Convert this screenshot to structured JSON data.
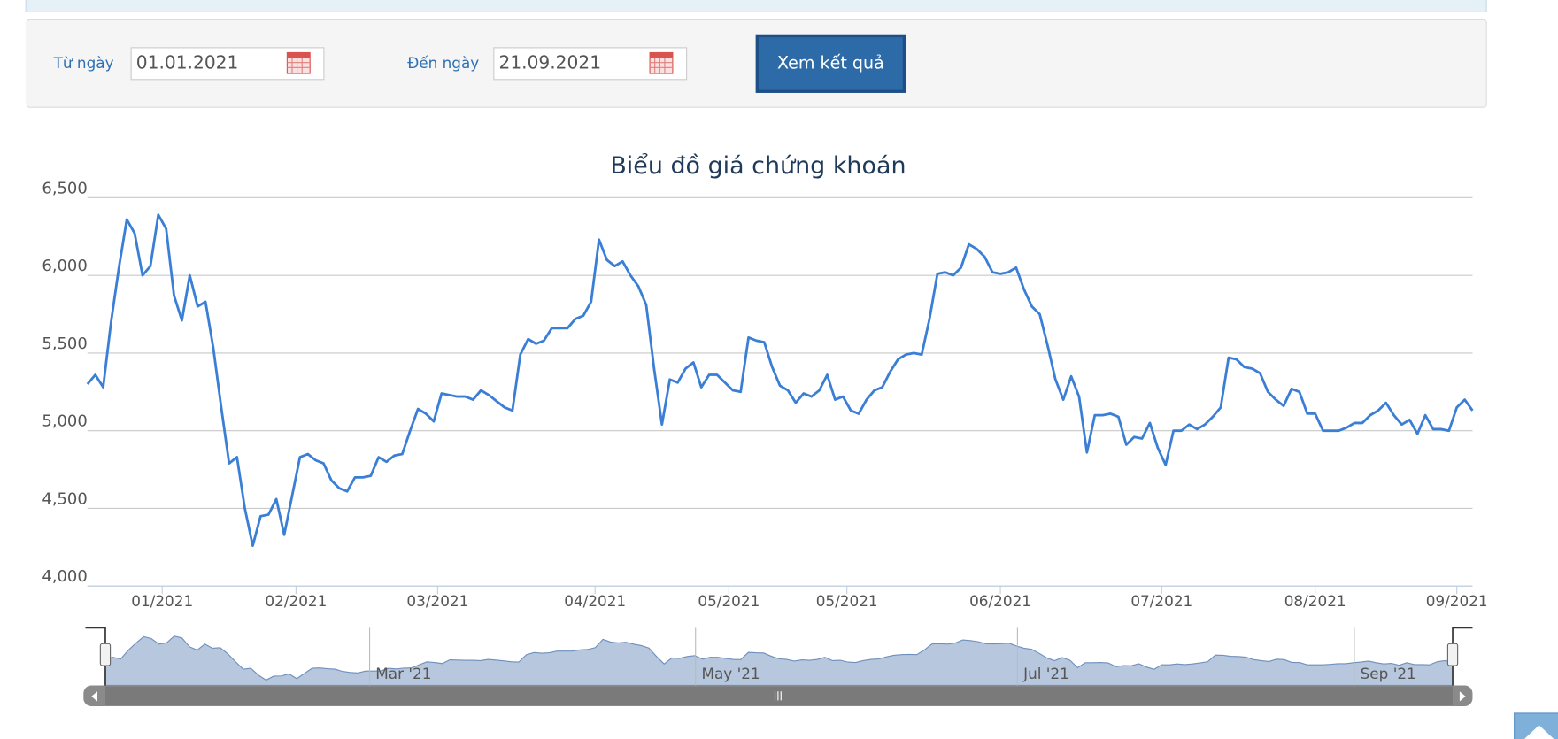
{
  "form": {
    "from_label": "Từ ngày",
    "from_value": "01.01.2021",
    "to_label": "Đến ngày",
    "to_value": "21.09.2021",
    "button": "Xem kết quả"
  },
  "chart_data": {
    "type": "line",
    "title": "Biểu đồ giá chứng khoán",
    "color": "#3a7fd5",
    "values": [
      5300,
      5360,
      5280,
      5700,
      6050,
      6360,
      6270,
      6000,
      6060,
      6390,
      6300,
      5870,
      5710,
      6000,
      5800,
      5830,
      5530,
      5150,
      4790,
      4830,
      4500,
      4260,
      4450,
      4460,
      4560,
      4330,
      4580,
      4830,
      4850,
      4810,
      4790,
      4680,
      4630,
      4610,
      4700,
      4700,
      4710,
      4830,
      4800,
      4840,
      4850,
      5000,
      5140,
      5110,
      5060,
      5240,
      5230,
      5220,
      5220,
      5200,
      5260,
      5230,
      5190,
      5150,
      5130,
      5490,
      5590,
      5560,
      5580,
      5660,
      5660,
      5660,
      5720,
      5740,
      5830,
      6230,
      6100,
      6060,
      6090,
      6000,
      5930,
      5810,
      5400,
      5040,
      5330,
      5310,
      5400,
      5440,
      5280,
      5360,
      5360,
      5310,
      5260,
      5250,
      5600,
      5580,
      5570,
      5410,
      5290,
      5260,
      5180,
      5240,
      5220,
      5260,
      5360,
      5200,
      5220,
      5130,
      5110,
      5200,
      5260,
      5280,
      5380,
      5460,
      5490,
      5500,
      5490,
      5720,
      6010,
      6020,
      6000,
      6050,
      6200,
      6170,
      6120,
      6020,
      6010,
      6020,
      6050,
      5910,
      5800,
      5750,
      5550,
      5330,
      5200,
      5350,
      5220,
      4860,
      5100,
      5100,
      5110,
      5090,
      4910,
      4960,
      4950,
      5050,
      4890,
      4780,
      5000,
      5000,
      5040,
      5010,
      5040,
      5090,
      5150,
      5470,
      5460,
      5410,
      5400,
      5370,
      5250,
      5200,
      5160,
      5270,
      5250,
      5110,
      5110,
      5000,
      5000,
      5000,
      5020,
      5050,
      5050,
      5100,
      5130,
      5180,
      5100,
      5040,
      5070,
      4980,
      5100,
      5010,
      5010,
      5000,
      5150,
      5200,
      5130
    ],
    "xlim": [
      0,
      176
    ],
    "xticks": [
      {
        "value": 9.5,
        "label": "01/2021"
      },
      {
        "value": 26.5,
        "label": "02/2021"
      },
      {
        "value": 44.5,
        "label": "03/2021"
      },
      {
        "value": 64.5,
        "label": "04/2021"
      },
      {
        "value": 81.5,
        "label": "05/2021"
      },
      {
        "value": 96.5,
        "label": "05/2021"
      },
      {
        "value": 116,
        "label": "06/2021"
      },
      {
        "value": 136.5,
        "label": "07/2021"
      },
      {
        "value": 156,
        "label": "08/2021"
      },
      {
        "value": 174,
        "label": "09/2021"
      }
    ],
    "ylim": [
      4000,
      6500
    ],
    "yticks": [
      {
        "value": 4000,
        "label": "4,000"
      },
      {
        "value": 4500,
        "label": "4,500"
      },
      {
        "value": 5000,
        "label": "5,000"
      },
      {
        "value": 5500,
        "label": "5,500"
      },
      {
        "value": 6000,
        "label": "6,000"
      },
      {
        "value": 6500,
        "label": "6,500"
      }
    ],
    "grid": true,
    "navigator_labels": [
      "Mar '21",
      "May '21",
      "Jul '21",
      "Sep '21"
    ]
  }
}
